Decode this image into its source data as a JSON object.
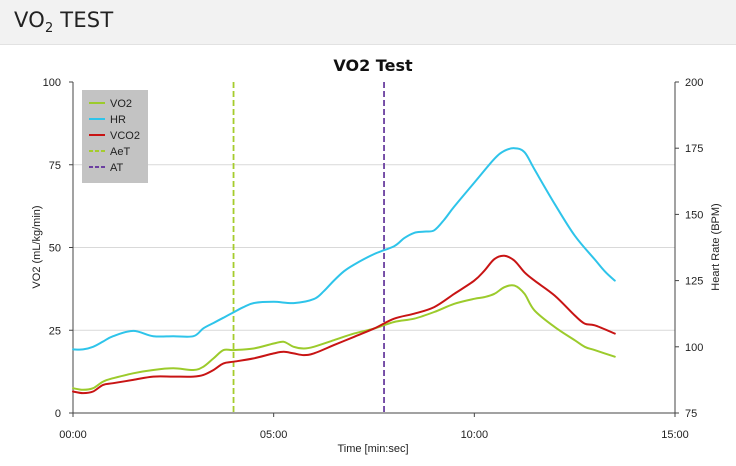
{
  "header": {
    "title_main": "VO",
    "title_sub": "2",
    "title_rest": " TEST"
  },
  "colors": {
    "vo2": "#9ccb2c",
    "hr": "#2ec4ea",
    "vco2": "#c81414",
    "aet": "#a5cc2c",
    "at": "#6b3fa0",
    "legend_bg": "#c3c3c3",
    "grid": "#d9d9d9"
  },
  "chart_data": {
    "type": "line",
    "title": "VO2 Test",
    "xlabel": "Time [min:sec]",
    "ylabel": "VO2 (mL/kg/min)",
    "y2label": "Heart Rate (BPM)",
    "xlim": [
      0,
      15
    ],
    "ylim": [
      0,
      100
    ],
    "y2lim": [
      75,
      200
    ],
    "x_ticks": [
      0,
      5,
      10,
      15
    ],
    "x_tick_labels": [
      "00:00",
      "05:00",
      "10:00",
      "15:00"
    ],
    "y_ticks": [
      0,
      25,
      50,
      75,
      100
    ],
    "y_tick_labels": [
      "0",
      "25",
      "50",
      "75",
      "100"
    ],
    "y2_ticks": [
      75,
      100,
      125,
      150,
      175,
      200
    ],
    "y2_tick_labels": [
      "75",
      "100",
      "125",
      "150",
      "175",
      "200"
    ],
    "legend": [
      {
        "key": "vo2",
        "label": "VO2",
        "style": "solid"
      },
      {
        "key": "hr",
        "label": "HR",
        "style": "solid"
      },
      {
        "key": "vco2",
        "label": "VCO2",
        "style": "solid"
      },
      {
        "key": "aet",
        "label": "AeT",
        "style": "dashed"
      },
      {
        "key": "at",
        "label": "AT",
        "style": "dashed"
      }
    ],
    "vlines": [
      {
        "key": "aet",
        "name": "AeT",
        "x": 4.0
      },
      {
        "key": "at",
        "name": "AT",
        "x": 7.75
      }
    ],
    "series": [
      {
        "key": "vo2",
        "name": "VO2",
        "axis": "left",
        "x": [
          0,
          0.25,
          0.5,
          0.75,
          1.0,
          1.5,
          2.0,
          2.5,
          3.0,
          3.25,
          3.5,
          3.75,
          4.0,
          4.5,
          5.0,
          5.25,
          5.5,
          5.75,
          6.0,
          6.5,
          7.0,
          7.5,
          8.0,
          8.5,
          9.0,
          9.5,
          10.0,
          10.25,
          10.5,
          10.75,
          11.0,
          11.25,
          11.5,
          12.0,
          12.5,
          12.75,
          13.0,
          13.5
        ],
        "values": [
          7.5,
          7,
          7.5,
          9.5,
          10.5,
          12,
          13,
          13.5,
          13,
          14,
          16.5,
          19,
          19,
          19.5,
          21,
          21.5,
          20,
          19.5,
          20,
          22,
          24,
          25.5,
          27.5,
          28.5,
          30.5,
          33,
          34.5,
          35,
          36,
          38,
          38.5,
          36,
          31,
          26,
          22,
          20,
          19,
          17
        ]
      },
      {
        "key": "hr",
        "name": "HR",
        "axis": "right",
        "x": [
          0,
          0.25,
          0.5,
          0.75,
          1.0,
          1.5,
          2.0,
          2.5,
          3.0,
          3.25,
          3.5,
          3.75,
          4.0,
          4.25,
          4.5,
          5.0,
          5.5,
          6.0,
          6.25,
          6.5,
          6.75,
          7.0,
          7.5,
          8.0,
          8.25,
          8.5,
          8.75,
          9.0,
          9.25,
          9.5,
          10.0,
          10.5,
          10.75,
          11.0,
          11.25,
          11.5,
          12.0,
          12.5,
          13.0,
          13.25,
          13.5
        ],
        "values": [
          99,
          99,
          100,
          102,
          104,
          106,
          104,
          104,
          104,
          107,
          109,
          111,
          113,
          115,
          116.5,
          117,
          116.5,
          118,
          121,
          125,
          128.5,
          131,
          135,
          138,
          141,
          143,
          143.5,
          144,
          148,
          153,
          162,
          171,
          174,
          175,
          173.5,
          167,
          154,
          142,
          133,
          128.5,
          125
        ]
      },
      {
        "key": "vco2",
        "name": "VCO2",
        "axis": "left",
        "x": [
          0,
          0.25,
          0.5,
          0.75,
          1.0,
          1.5,
          2.0,
          2.5,
          3.0,
          3.25,
          3.5,
          3.75,
          4.0,
          4.5,
          5.0,
          5.25,
          5.5,
          5.75,
          6.0,
          6.5,
          7.0,
          7.5,
          8.0,
          8.5,
          9.0,
          9.5,
          10.0,
          10.25,
          10.5,
          10.75,
          11.0,
          11.25,
          11.5,
          12.0,
          12.5,
          12.75,
          13.0,
          13.5
        ],
        "values": [
          6.5,
          6,
          6.5,
          8.5,
          9,
          10,
          11,
          11,
          11,
          11.5,
          13,
          15,
          15.5,
          16.5,
          18,
          18.5,
          18,
          17.5,
          18,
          20.5,
          23,
          25.5,
          28.5,
          30,
          32,
          36,
          40,
          43,
          46.5,
          47.5,
          46,
          42.5,
          40,
          35.5,
          29.5,
          27,
          26.5,
          24
        ]
      }
    ]
  }
}
